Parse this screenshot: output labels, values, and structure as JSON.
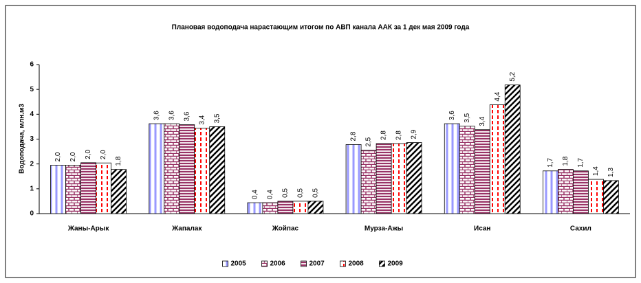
{
  "chart_data": {
    "type": "bar",
    "title": "Плановая водоподача нарастающим итогом по АВП канала ААК за 1 дек мая 2009 года",
    "y_label": "Водоподача, млн.м3",
    "categories": [
      "Жаны-Арык",
      "Жапалак",
      "Жойпас",
      "Мурза-Ажы",
      "Исан",
      "Сахил"
    ],
    "series": [
      {
        "name": "2005",
        "color": "#9999ff",
        "values": [
          1.95,
          3.62,
          0.44,
          2.78,
          3.62,
          1.72
        ],
        "value_labels": [
          "2,0",
          "3,6",
          "0,4",
          "2,8",
          "3,6",
          "1,7"
        ]
      },
      {
        "name": "2006",
        "color": "#993366",
        "values": [
          1.95,
          3.62,
          0.44,
          2.55,
          3.52,
          1.78
        ],
        "value_labels": [
          "2,0",
          "3,6",
          "0,4",
          "2,5",
          "3,5",
          "1,8"
        ]
      },
      {
        "name": "2007",
        "color": "#993366",
        "values": [
          2.05,
          3.58,
          0.5,
          2.82,
          3.38,
          1.72
        ],
        "value_labels": [
          "2,0",
          "3,6",
          "0,5",
          "2,8",
          "3,4",
          "1,7"
        ]
      },
      {
        "name": "2008",
        "color": "#ff0000",
        "values": [
          2.04,
          3.44,
          0.5,
          2.82,
          4.38,
          1.38
        ],
        "value_labels": [
          "2,0",
          "3,4",
          "0,5",
          "2,8",
          "4,4",
          "1,4"
        ]
      },
      {
        "name": "2009",
        "color": "#000000",
        "values": [
          1.78,
          3.5,
          0.5,
          2.86,
          5.18,
          1.33
        ],
        "value_labels": [
          "1,8",
          "3,5",
          "0,5",
          "2,9",
          "5,2",
          "1,3"
        ]
      }
    ],
    "ylim": [
      0,
      6
    ],
    "yticks": [
      0,
      1,
      2,
      3,
      4,
      5,
      6
    ],
    "legend": "bottom"
  }
}
